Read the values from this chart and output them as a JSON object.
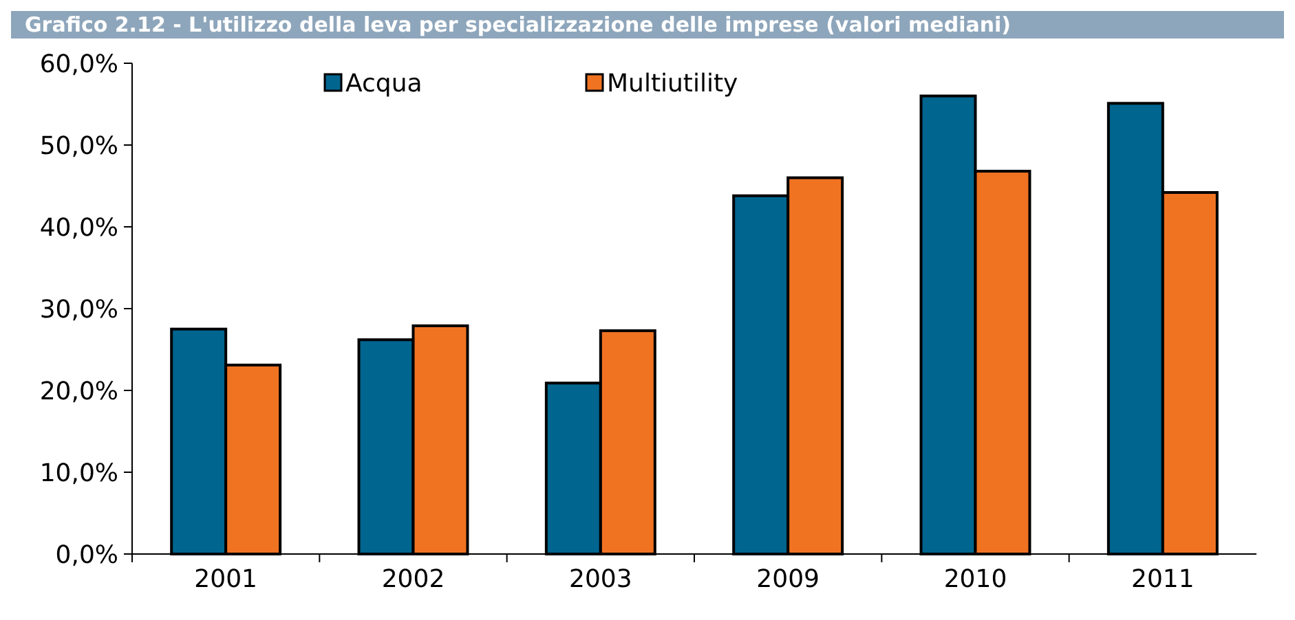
{
  "chart_data": {
    "type": "bar",
    "title": "Grafico 2.12 - L'utilizzo della leva per specializzazione delle imprese (valori mediani)",
    "categories": [
      "2001",
      "2002",
      "2003",
      "2009",
      "2010",
      "2011"
    ],
    "series": [
      {
        "name": "Acqua",
        "color": "#00658f",
        "values": [
          27.5,
          26.2,
          20.9,
          43.8,
          56.0,
          55.1
        ]
      },
      {
        "name": "Multiutility",
        "color": "#f07322",
        "values": [
          23.1,
          27.9,
          27.3,
          46.0,
          46.8,
          44.2
        ]
      }
    ],
    "ylim": [
      0,
      60
    ],
    "yticks": [
      {
        "value": 0,
        "label": "0,0%"
      },
      {
        "value": 10,
        "label": "10,0%"
      },
      {
        "value": 20,
        "label": "20,0%"
      },
      {
        "value": 30,
        "label": "30,0%"
      },
      {
        "value": 40,
        "label": "40,0%"
      },
      {
        "value": 50,
        "label": "50,0%"
      },
      {
        "value": 60,
        "label": "60,0%"
      }
    ],
    "legend": "top left"
  }
}
